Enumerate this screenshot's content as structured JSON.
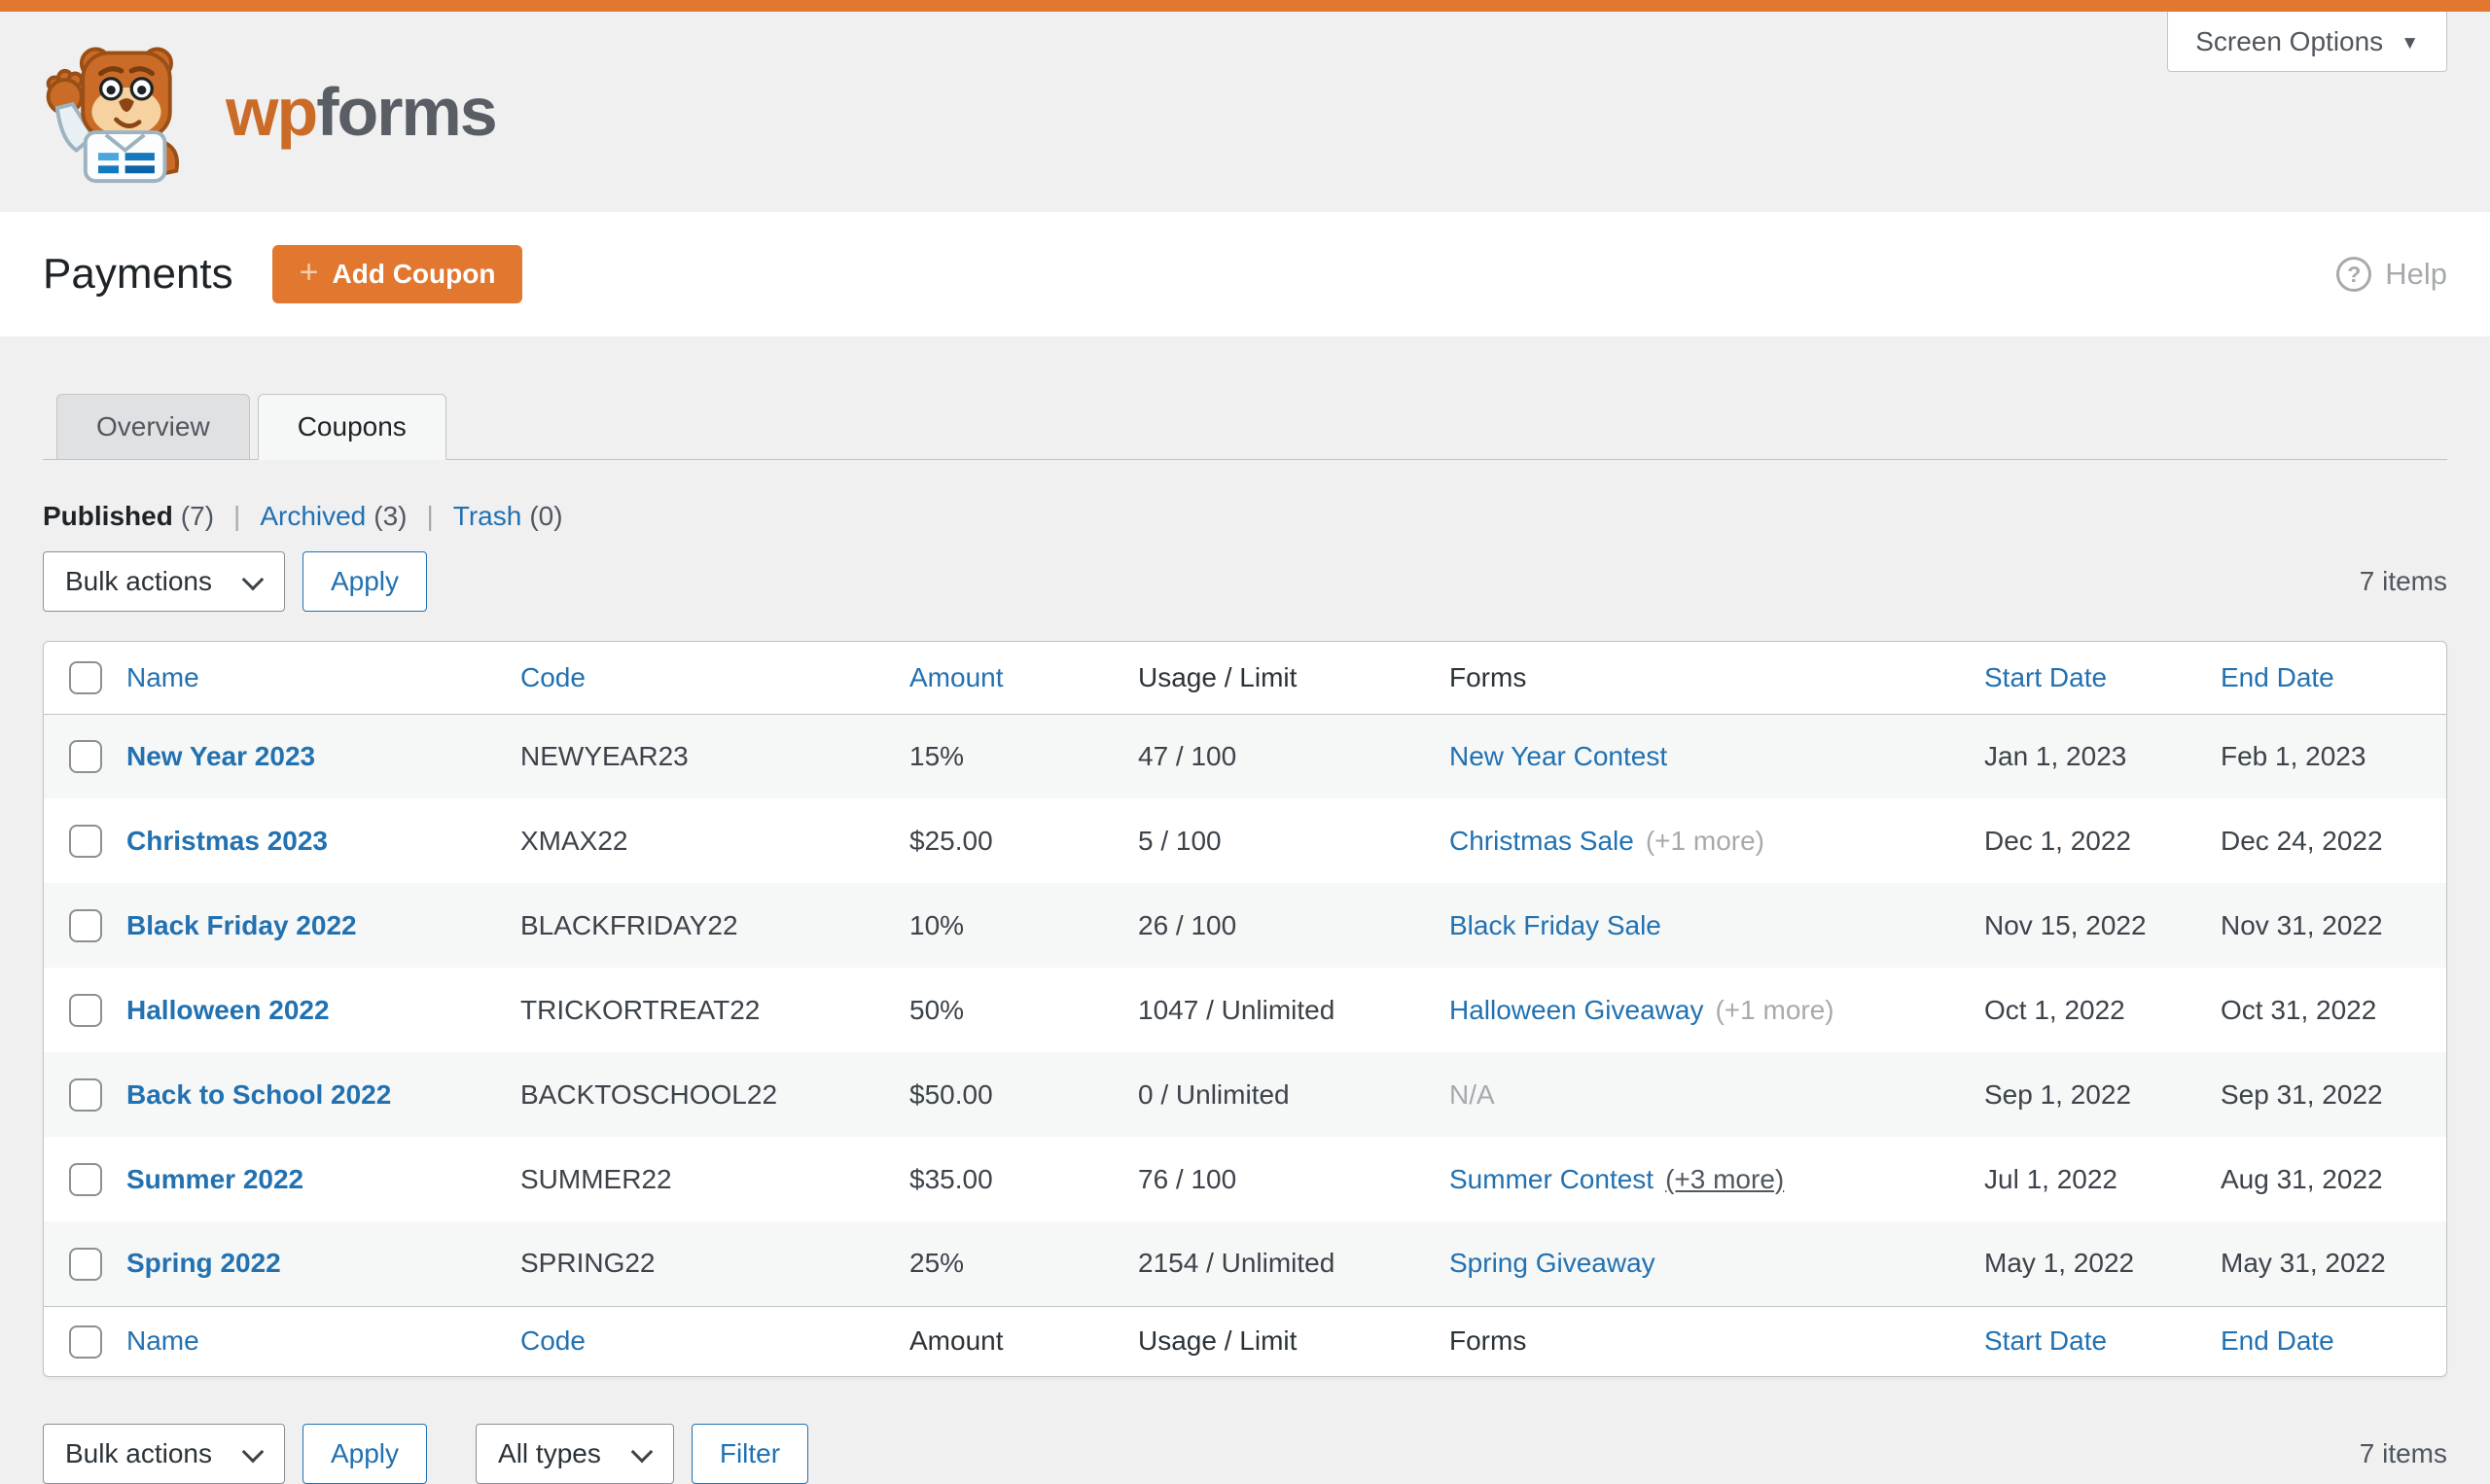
{
  "colors": {
    "accent_orange": "#e27730",
    "link_blue": "#2271b1"
  },
  "icons": {
    "caret_down": "▼",
    "help_question": "?",
    "add_plus": "+",
    "brand": "wpforms-bear-logo"
  },
  "screen_options": {
    "label": "Screen Options"
  },
  "brand": {
    "wp": "wp",
    "forms": "forms"
  },
  "header": {
    "title": "Payments",
    "add_coupon_label": "Add Coupon",
    "help_label": "Help"
  },
  "tabs": [
    {
      "label": "Overview",
      "active": false
    },
    {
      "label": "Coupons",
      "active": true
    }
  ],
  "views": [
    {
      "label": "Published",
      "count": "(7)",
      "current": true
    },
    {
      "label": "Archived",
      "count": "(3)",
      "current": false
    },
    {
      "label": "Trash",
      "count": "(0)",
      "current": false
    }
  ],
  "toolbar_top": {
    "bulk_actions": "Bulk actions",
    "apply": "Apply",
    "items_count": "7 items"
  },
  "toolbar_bottom": {
    "bulk_actions": "Bulk actions",
    "apply": "Apply",
    "type_filter": "All types",
    "filter": "Filter",
    "items_count": "7 items"
  },
  "table": {
    "columns": [
      {
        "label": "Name",
        "header_sortable": true,
        "footer_sortable": true
      },
      {
        "label": "Code",
        "header_sortable": true,
        "footer_sortable": true
      },
      {
        "label": "Amount",
        "header_sortable": true,
        "footer_sortable": false
      },
      {
        "label": "Usage / Limit",
        "header_sortable": false,
        "footer_sortable": false
      },
      {
        "label": "Forms",
        "header_sortable": false,
        "footer_sortable": false
      },
      {
        "label": "Start Date",
        "header_sortable": true,
        "footer_sortable": true
      },
      {
        "label": "End Date",
        "header_sortable": true,
        "footer_sortable": true
      }
    ],
    "rows": [
      {
        "name": "New Year 2023",
        "code": "NEWYEAR23",
        "amount": "15%",
        "usage": "47 / 100",
        "forms": {
          "label": "New Year Contest",
          "link": true,
          "extra": "",
          "extra_style": ""
        },
        "start_date": "Jan 1, 2023",
        "end_date": "Feb 1, 2023"
      },
      {
        "name": "Christmas 2023",
        "code": "XMAX22",
        "amount": "$25.00",
        "usage": "5 / 100",
        "forms": {
          "label": "Christmas Sale",
          "link": true,
          "extra": "(+1 more)",
          "extra_style": "muted"
        },
        "start_date": "Dec 1, 2022",
        "end_date": "Dec 24, 2022"
      },
      {
        "name": "Black Friday 2022",
        "code": "BLACKFRIDAY22",
        "amount": "10%",
        "usage": "26 / 100",
        "forms": {
          "label": "Black Friday Sale",
          "link": true,
          "extra": "",
          "extra_style": ""
        },
        "start_date": "Nov 15, 2022",
        "end_date": "Nov 31, 2022"
      },
      {
        "name": "Halloween 2022",
        "code": "TRICKORTREAT22",
        "amount": "50%",
        "usage": "1047 / Unlimited",
        "forms": {
          "label": "Halloween Giveaway",
          "link": true,
          "extra": "(+1 more)",
          "extra_style": "muted"
        },
        "start_date": "Oct 1, 2022",
        "end_date": "Oct 31, 2022"
      },
      {
        "name": "Back to School 2022",
        "code": "BACKTOSCHOOL22",
        "amount": "$50.00",
        "usage": "0 / Unlimited",
        "forms": {
          "label": "N/A",
          "link": false,
          "extra": "",
          "extra_style": ""
        },
        "start_date": "Sep 1, 2022",
        "end_date": "Sep 31, 2022"
      },
      {
        "name": "Summer 2022",
        "code": "SUMMER22",
        "amount": "$35.00",
        "usage": "76 / 100",
        "forms": {
          "label": "Summer Contest",
          "link": true,
          "extra": "(+3 more)",
          "extra_style": "underline"
        },
        "start_date": "Jul 1, 2022",
        "end_date": "Aug 31, 2022"
      },
      {
        "name": "Spring 2022",
        "code": "SPRING22",
        "amount": "25%",
        "usage": "2154 / Unlimited",
        "forms": {
          "label": "Spring Giveaway",
          "link": true,
          "extra": "",
          "extra_style": ""
        },
        "start_date": "May 1, 2022",
        "end_date": "May 31, 2022"
      }
    ]
  }
}
